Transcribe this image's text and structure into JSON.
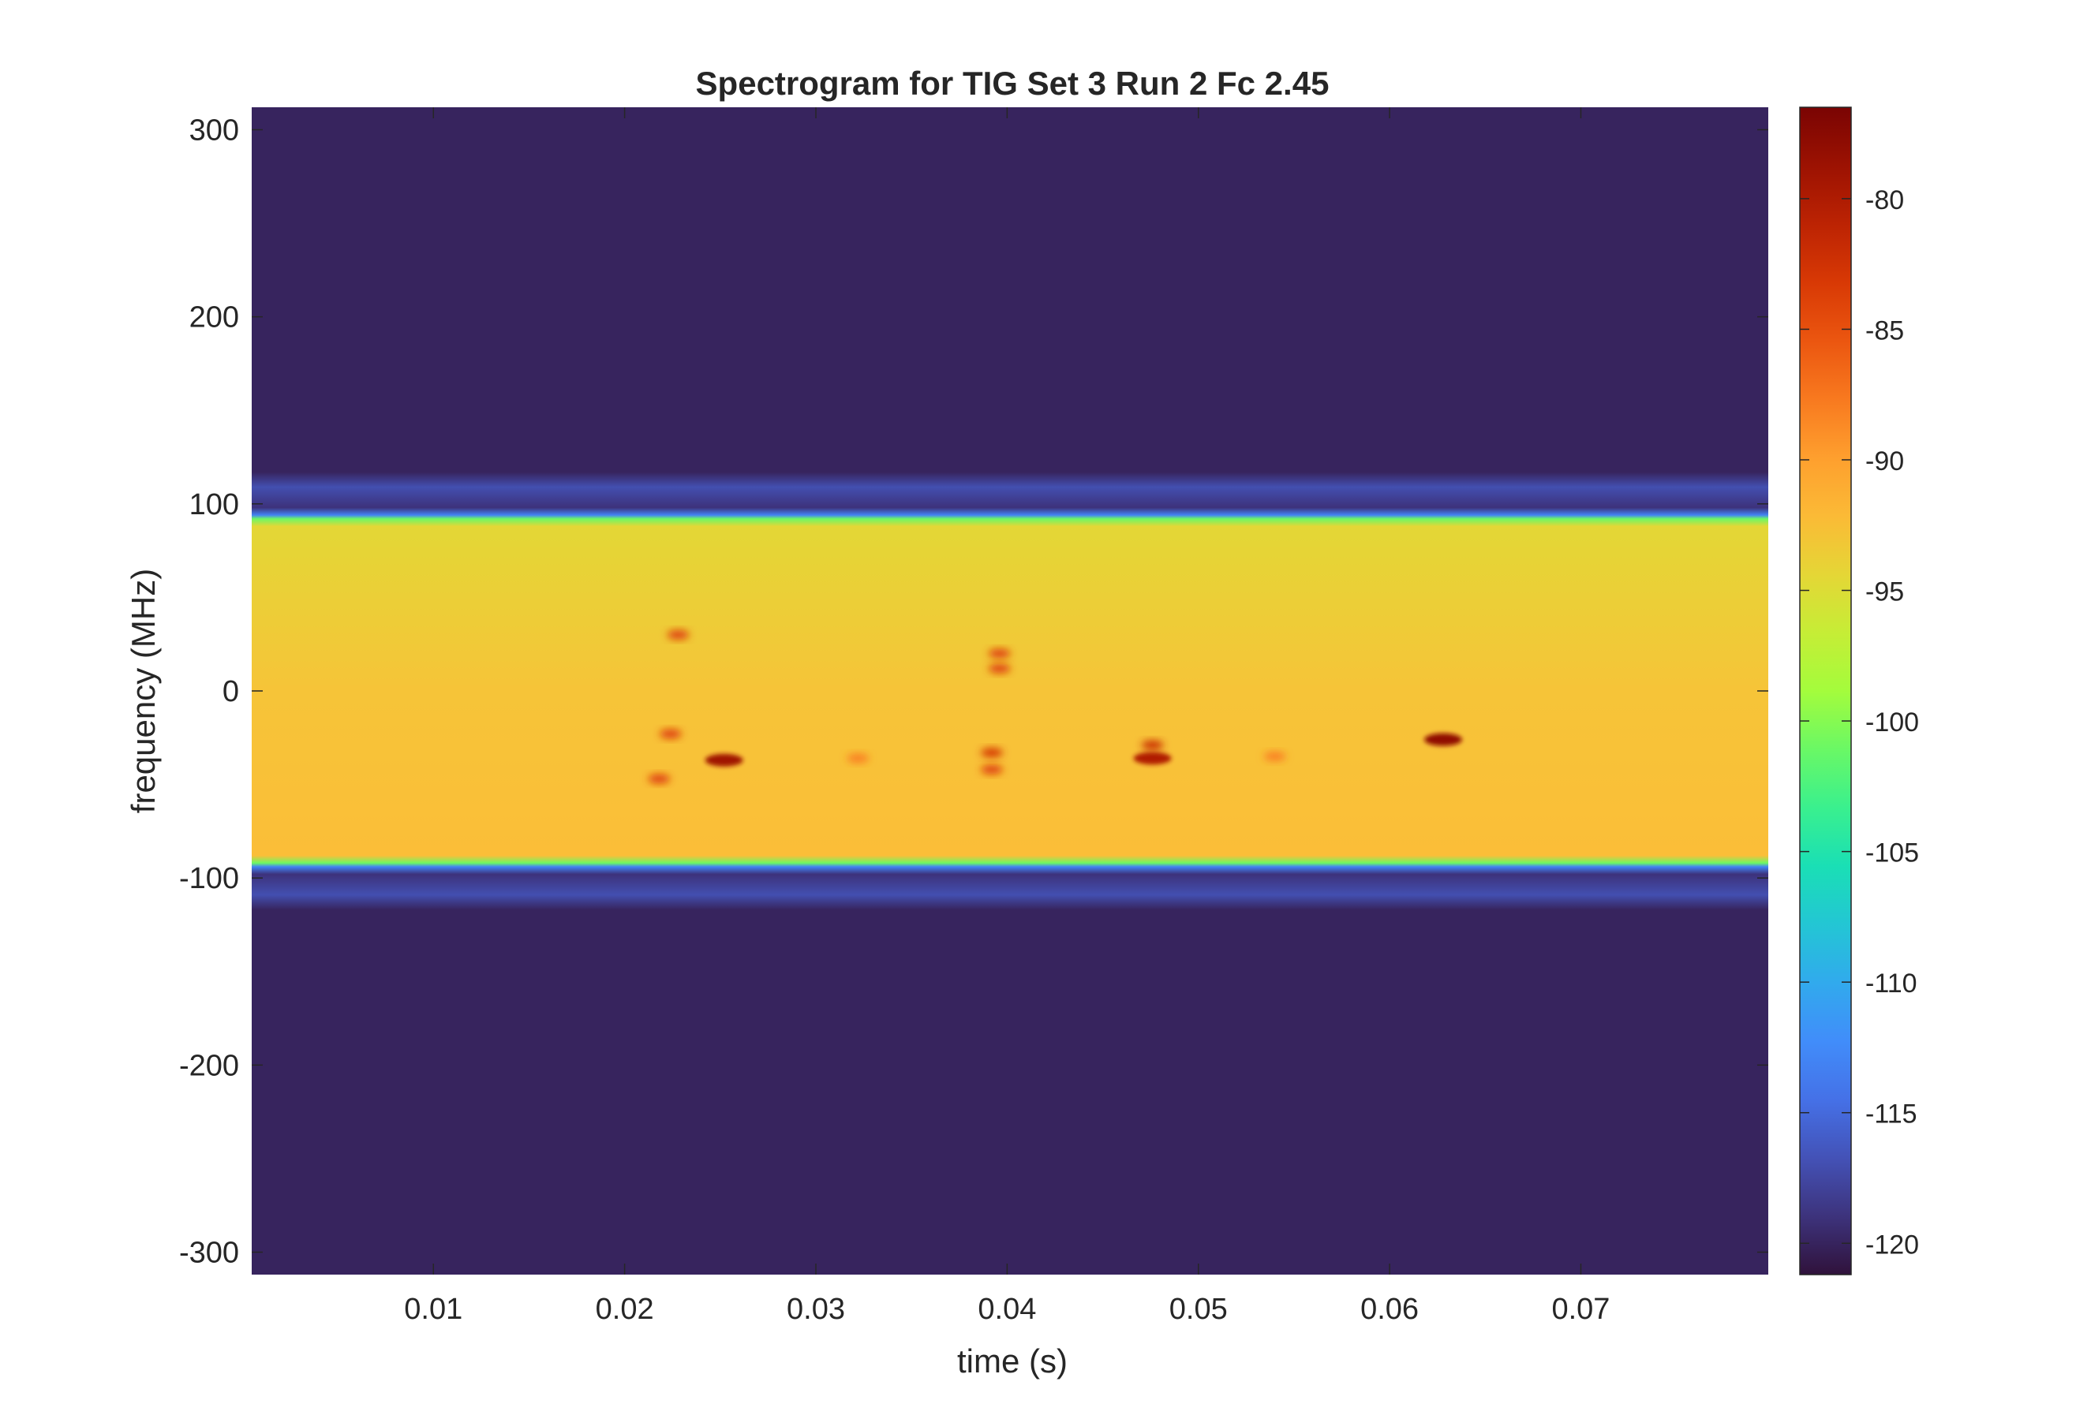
{
  "chart_data": {
    "type": "heatmap",
    "title": "Spectrogram for TIG Set 3 Run 2 Fc 2.45",
    "xlabel": "time (s)",
    "ylabel": "frequency (MHz)",
    "xlim": [
      0.0005,
      0.0798
    ],
    "ylim": [
      -312,
      312
    ],
    "x_ticks": [
      "0.01",
      "0.02",
      "0.03",
      "0.04",
      "0.05",
      "0.06",
      "0.07"
    ],
    "x_tick_values": [
      0.01,
      0.02,
      0.03,
      0.04,
      0.05,
      0.06,
      0.07
    ],
    "y_ticks": [
      "300",
      "200",
      "100",
      "0",
      "-100",
      "-200",
      "-300"
    ],
    "y_tick_values": [
      300,
      200,
      100,
      0,
      -100,
      -200,
      -300
    ],
    "colorbar": {
      "colormap": "turbo",
      "clim": [
        -121.2,
        -76.5
      ],
      "ticks": [
        "-80",
        "-85",
        "-90",
        "-95",
        "-100",
        "-105",
        "-110",
        "-115",
        "-120"
      ],
      "tick_values": [
        -80,
        -85,
        -90,
        -95,
        -100,
        -105,
        -110,
        -115,
        -120
      ]
    },
    "background_level_db": -120,
    "passband": {
      "freq_range_mhz": [
        -92,
        92
      ],
      "level_db": -93,
      "edge_level_db": -101,
      "side_ridges_mhz": [
        109,
        -109
      ],
      "side_ridge_level_db": -117
    },
    "hotspots": [
      {
        "time": 0.0228,
        "freq": 30,
        "level_db": -84
      },
      {
        "time": 0.0224,
        "freq": -23,
        "level_db": -84
      },
      {
        "time": 0.0218,
        "freq": -47,
        "level_db": -84
      },
      {
        "time": 0.0252,
        "freq": -37,
        "level_db": -79
      },
      {
        "time": 0.0322,
        "freq": -36,
        "level_db": -88
      },
      {
        "time": 0.0392,
        "freq": -33,
        "level_db": -83
      },
      {
        "time": 0.0392,
        "freq": -42,
        "level_db": -84
      },
      {
        "time": 0.0396,
        "freq": 20,
        "level_db": -84
      },
      {
        "time": 0.0396,
        "freq": 12,
        "level_db": -84
      },
      {
        "time": 0.0476,
        "freq": -29,
        "level_db": -82
      },
      {
        "time": 0.0476,
        "freq": -36,
        "level_db": -80
      },
      {
        "time": 0.054,
        "freq": -35,
        "level_db": -88
      },
      {
        "time": 0.0628,
        "freq": -26,
        "level_db": -78
      }
    ]
  }
}
